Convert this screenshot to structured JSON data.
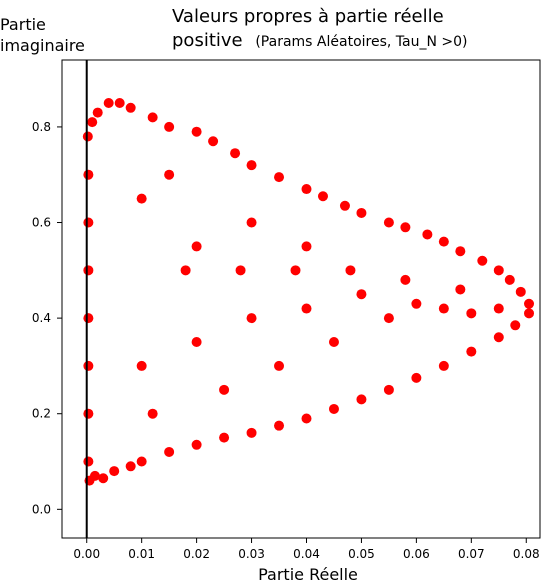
{
  "chart_data": {
    "type": "scatter",
    "title_line1": "Valeurs propres à partie réelle",
    "title_line2_main": "positive",
    "title_line2_sub": "(Params Aléatoires, Tau_N >0)",
    "xlabel": "Partie Réelle",
    "ylabel_line1": "Partie",
    "ylabel_line2": "imaginaire",
    "xlim": [
      -0.0045,
      0.0825
    ],
    "ylim": [
      -0.06,
      0.94
    ],
    "x_ticks": [
      0.0,
      0.01,
      0.02,
      0.03,
      0.04,
      0.05,
      0.06,
      0.07,
      0.08
    ],
    "x_tick_labels": [
      "0.00",
      "0.01",
      "0.02",
      "0.03",
      "0.04",
      "0.05",
      "0.06",
      "0.07",
      "0.08"
    ],
    "y_ticks": [
      0.0,
      0.2,
      0.4,
      0.6,
      0.8
    ],
    "y_tick_labels": [
      "0.0",
      "0.2",
      "0.4",
      "0.6",
      "0.8"
    ],
    "vertical_line_x": 0.0,
    "marker_color": "#ff0000",
    "line_color": "#000000",
    "grid": false,
    "series": [
      {
        "points": [
          [
            0.0005,
            0.06
          ],
          [
            0.0015,
            0.07
          ],
          [
            0.003,
            0.065
          ],
          [
            0.005,
            0.08
          ],
          [
            0.008,
            0.09
          ],
          [
            0.01,
            0.1
          ],
          [
            0.015,
            0.12
          ],
          [
            0.02,
            0.135
          ],
          [
            0.025,
            0.15
          ],
          [
            0.03,
            0.16
          ],
          [
            0.035,
            0.175
          ],
          [
            0.04,
            0.19
          ],
          [
            0.045,
            0.21
          ],
          [
            0.05,
            0.23
          ],
          [
            0.055,
            0.25
          ],
          [
            0.06,
            0.275
          ],
          [
            0.065,
            0.3
          ],
          [
            0.07,
            0.33
          ],
          [
            0.075,
            0.36
          ],
          [
            0.078,
            0.385
          ],
          [
            0.0805,
            0.41
          ],
          [
            0.0805,
            0.43
          ],
          [
            0.079,
            0.455
          ],
          [
            0.077,
            0.48
          ],
          [
            0.075,
            0.5
          ],
          [
            0.072,
            0.52
          ],
          [
            0.068,
            0.54
          ],
          [
            0.065,
            0.56
          ],
          [
            0.062,
            0.575
          ],
          [
            0.058,
            0.59
          ],
          [
            0.055,
            0.6
          ],
          [
            0.05,
            0.62
          ],
          [
            0.047,
            0.635
          ],
          [
            0.043,
            0.655
          ],
          [
            0.04,
            0.67
          ],
          [
            0.035,
            0.695
          ],
          [
            0.03,
            0.72
          ],
          [
            0.027,
            0.745
          ],
          [
            0.023,
            0.77
          ],
          [
            0.02,
            0.79
          ],
          [
            0.015,
            0.8
          ],
          [
            0.012,
            0.82
          ],
          [
            0.008,
            0.84
          ],
          [
            0.006,
            0.85
          ],
          [
            0.004,
            0.85
          ],
          [
            0.002,
            0.83
          ],
          [
            0.001,
            0.81
          ],
          [
            0.0002,
            0.78
          ],
          [
            0.0003,
            0.7
          ],
          [
            0.0003,
            0.6
          ],
          [
            0.0003,
            0.5
          ],
          [
            0.0003,
            0.4
          ],
          [
            0.0003,
            0.3
          ],
          [
            0.0003,
            0.2
          ],
          [
            0.0003,
            0.1
          ],
          [
            0.01,
            0.3
          ],
          [
            0.02,
            0.35
          ],
          [
            0.03,
            0.4
          ],
          [
            0.04,
            0.42
          ],
          [
            0.05,
            0.45
          ],
          [
            0.06,
            0.43
          ],
          [
            0.07,
            0.41
          ],
          [
            0.02,
            0.55
          ],
          [
            0.03,
            0.6
          ],
          [
            0.04,
            0.55
          ],
          [
            0.01,
            0.65
          ],
          [
            0.015,
            0.7
          ],
          [
            0.025,
            0.25
          ],
          [
            0.035,
            0.3
          ],
          [
            0.045,
            0.35
          ],
          [
            0.055,
            0.4
          ],
          [
            0.065,
            0.42
          ],
          [
            0.075,
            0.42
          ],
          [
            0.012,
            0.2
          ],
          [
            0.018,
            0.5
          ],
          [
            0.028,
            0.5
          ],
          [
            0.038,
            0.5
          ],
          [
            0.048,
            0.5
          ],
          [
            0.058,
            0.48
          ],
          [
            0.068,
            0.46
          ]
        ]
      }
    ]
  }
}
